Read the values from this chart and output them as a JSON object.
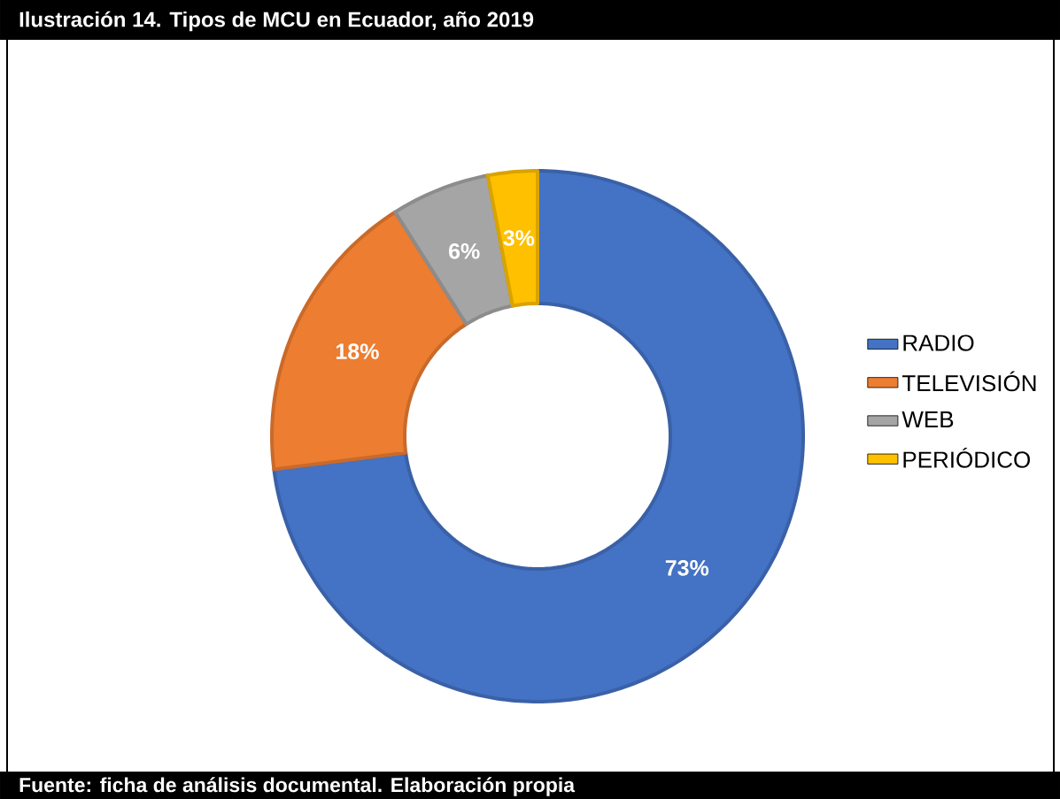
{
  "chart_data": {
    "type": "donut",
    "title": "Ilustración 14. Tipos de MCU en Ecuador, año 2019",
    "categories": [
      "RADIO",
      "TELEVISIÓN",
      "WEB",
      "PERIÓDICO"
    ],
    "values": [
      73,
      18,
      6,
      3
    ],
    "colors": [
      "#4472c4",
      "#ed7d31",
      "#a5a5a5",
      "#ffc000"
    ],
    "value_labels": [
      "73%",
      "18%",
      "6%",
      "3%"
    ],
    "legend": "right",
    "annotations": [
      "Fuente: ficha de análisis documental. Elaboración propia"
    ]
  }
}
